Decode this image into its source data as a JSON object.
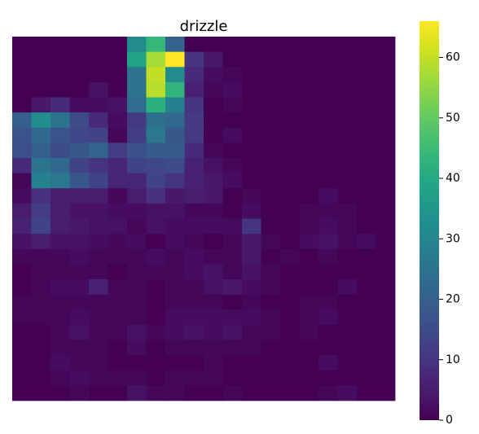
{
  "chart_data": {
    "type": "heatmap",
    "title": "drizzle",
    "xlabel": "",
    "ylabel": "",
    "colormap": "viridis",
    "vmin": 0,
    "vmax": 66,
    "colorbar_ticks": [
      0,
      10,
      20,
      30,
      40,
      50,
      60
    ],
    "colorbar_tick_labels": [
      "0",
      "10",
      "20",
      "30",
      "40",
      "50",
      "60"
    ],
    "show_axes": false,
    "grid": false,
    "values": [
      [
        0,
        0,
        0,
        0,
        0,
        0,
        32,
        44,
        21,
        0,
        0,
        0,
        0,
        0,
        0,
        0,
        0,
        0,
        0,
        0
      ],
      [
        0,
        0,
        0,
        0,
        0,
        0,
        38,
        57,
        66,
        10,
        4,
        0,
        0,
        0,
        0,
        0,
        0,
        0,
        0,
        0
      ],
      [
        0,
        0,
        0,
        0,
        0,
        0,
        25,
        60,
        32,
        8,
        2,
        1,
        0,
        0,
        0,
        0,
        0,
        0,
        0,
        0
      ],
      [
        0,
        0,
        0,
        0,
        3,
        0,
        25,
        59,
        43,
        6,
        1,
        2,
        0,
        0,
        0,
        0,
        0,
        0,
        0,
        0
      ],
      [
        0,
        4,
        8,
        2,
        2,
        3,
        23,
        42,
        29,
        10,
        0,
        1,
        0,
        0,
        0,
        0,
        0,
        0,
        0,
        0
      ],
      [
        20,
        33,
        25,
        15,
        8,
        2,
        11,
        24,
        22,
        11,
        0,
        0,
        0,
        0,
        0,
        0,
        0,
        0,
        0,
        0
      ],
      [
        17,
        22,
        17,
        14,
        13,
        1,
        12,
        26,
        18,
        11,
        0,
        2,
        0,
        0,
        0,
        0,
        0,
        0,
        0,
        0
      ],
      [
        16,
        20,
        15,
        18,
        21,
        12,
        16,
        19,
        19,
        8,
        1,
        0,
        0,
        0,
        0,
        0,
        0,
        0,
        0,
        0
      ],
      [
        8,
        25,
        22,
        13,
        10,
        7,
        13,
        14,
        15,
        6,
        3,
        1,
        0,
        0,
        0,
        0,
        0,
        0,
        0,
        0
      ],
      [
        1,
        29,
        26,
        18,
        13,
        7,
        7,
        13,
        10,
        6,
        4,
        2,
        0,
        0,
        0,
        0,
        0,
        0,
        0,
        0
      ],
      [
        2,
        9,
        5,
        5,
        5,
        1,
        5,
        9,
        4,
        5,
        4,
        0,
        1,
        0,
        0,
        0,
        2,
        0,
        0,
        0
      ],
      [
        5,
        12,
        5,
        3,
        3,
        2,
        2,
        3,
        3,
        1,
        1,
        0,
        2,
        0,
        0,
        1,
        1,
        1,
        0,
        0
      ],
      [
        6,
        13,
        5,
        4,
        3,
        3,
        1,
        3,
        2,
        2,
        2,
        2,
        10,
        0,
        0,
        1,
        2,
        1,
        0,
        0
      ],
      [
        3,
        5,
        3,
        3,
        2,
        1,
        2,
        0,
        2,
        1,
        0,
        1,
        4,
        1,
        0,
        2,
        3,
        1,
        2,
        0
      ],
      [
        1,
        1,
        1,
        2,
        1,
        1,
        1,
        2,
        1,
        2,
        1,
        1,
        4,
        0,
        1,
        0,
        1,
        0,
        0,
        0
      ],
      [
        0,
        1,
        1,
        1,
        1,
        0,
        1,
        1,
        1,
        2,
        3,
        1,
        3,
        1,
        0,
        0,
        0,
        0,
        0,
        0
      ],
      [
        0,
        1,
        2,
        2,
        6,
        1,
        1,
        0,
        1,
        1,
        3,
        4,
        2,
        1,
        0,
        0,
        0,
        2,
        0,
        0
      ],
      [
        1,
        1,
        1,
        1,
        1,
        1,
        1,
        0,
        1,
        1,
        1,
        0,
        1,
        0,
        0,
        1,
        1,
        0,
        0,
        0
      ],
      [
        1,
        1,
        1,
        2,
        1,
        1,
        1,
        0,
        2,
        2,
        2,
        2,
        2,
        1,
        0,
        1,
        2,
        0,
        0,
        0
      ],
      [
        0,
        0,
        1,
        3,
        1,
        1,
        3,
        1,
        2,
        3,
        2,
        3,
        1,
        1,
        0,
        1,
        0,
        0,
        0,
        0
      ],
      [
        0,
        0,
        1,
        1,
        1,
        0,
        2,
        0,
        1,
        1,
        1,
        1,
        1,
        0,
        0,
        0,
        0,
        0,
        0,
        0
      ],
      [
        0,
        0,
        2,
        1,
        1,
        0,
        0,
        0,
        0,
        0,
        1,
        0,
        0,
        0,
        0,
        0,
        2,
        0,
        0,
        0
      ],
      [
        0,
        0,
        1,
        2,
        1,
        1,
        1,
        0,
        1,
        1,
        1,
        0,
        0,
        0,
        0,
        0,
        0,
        0,
        0,
        0
      ],
      [
        0,
        0,
        0,
        1,
        0,
        0,
        3,
        1,
        1,
        0,
        0,
        1,
        0,
        0,
        0,
        0,
        1,
        2,
        0,
        0
      ]
    ]
  }
}
